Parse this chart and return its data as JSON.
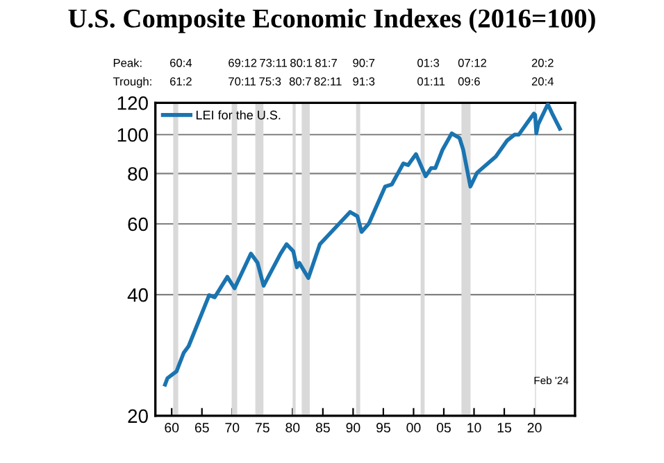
{
  "chart_data": {
    "type": "line",
    "title": "U.S. Composite Economic Indexes (2016=100)",
    "series": [
      {
        "name": "LEI for the U.S.",
        "color": "#1a74b0",
        "x": [
          1958.9,
          1959.3,
          1960.8,
          1962.0,
          1962.8,
          1966.2,
          1967.1,
          1969.2,
          1970.4,
          1973.1,
          1974.2,
          1975.2,
          1978.0,
          1979.0,
          1980.1,
          1980.7,
          1981.1,
          1982.6,
          1984.5,
          1989.5,
          1990.7,
          1991.4,
          1992.6,
          1995.3,
          1996.4,
          1998.3,
          1999.1,
          2000.4,
          2002.0,
          2002.9,
          2003.6,
          2004.8,
          2006.3,
          2007.6,
          2008.2,
          2009.4,
          2010.5,
          2013.6,
          2015.5,
          2016.7,
          2017.4,
          2018.9,
          2019.9,
          2020.1,
          2020.3,
          2020.6,
          2022.2,
          2022.9,
          2024.2
        ],
        "values": [
          23.9,
          24.8,
          25.8,
          28.7,
          29.8,
          39.9,
          39.4,
          44.3,
          41.5,
          50.6,
          48,
          42.1,
          50.6,
          53.4,
          51.3,
          46.8,
          48,
          44,
          53.4,
          64.2,
          62.7,
          57.3,
          60.1,
          74.3,
          75.2,
          84.8,
          84,
          89.4,
          78.8,
          82.6,
          82.6,
          91.8,
          100.7,
          98.1,
          91.8,
          74.3,
          80.4,
          88.2,
          96.8,
          100,
          100,
          107.6,
          112.8,
          112,
          100.7,
          106,
          119,
          113,
          103.4
        ]
      }
    ],
    "xlim": [
      1957.3,
      2026.7
    ],
    "xticks": [
      {
        "value": 1960,
        "label": "60"
      },
      {
        "value": 1965,
        "label": "65"
      },
      {
        "value": 1970,
        "label": "70"
      },
      {
        "value": 1975,
        "label": "75"
      },
      {
        "value": 1980,
        "label": "80"
      },
      {
        "value": 1985,
        "label": "85"
      },
      {
        "value": 1990,
        "label": "90"
      },
      {
        "value": 1995,
        "label": "95"
      },
      {
        "value": 2000,
        "label": "00"
      },
      {
        "value": 2005,
        "label": "05"
      },
      {
        "value": 2010,
        "label": "10"
      },
      {
        "value": 2015,
        "label": "15"
      },
      {
        "value": 2020,
        "label": "20"
      }
    ],
    "ylim": [
      20,
      120
    ],
    "yticks": [
      20,
      40,
      60,
      80,
      100,
      120
    ],
    "log": true,
    "grid": "y",
    "legend": "top left",
    "line_style": "solid",
    "marker": "none",
    "bands": [
      {
        "axis": "x",
        "from": 1960.25,
        "to": 1961.08,
        "color": "#d9d9d9"
      },
      {
        "axis": "x",
        "from": 1969.92,
        "to": 1970.83,
        "color": "#d9d9d9"
      },
      {
        "axis": "x",
        "from": 1973.83,
        "to": 1975.17,
        "color": "#d9d9d9"
      },
      {
        "axis": "x",
        "from": 1980.0,
        "to": 1980.5,
        "color": "#d9d9d9"
      },
      {
        "axis": "x",
        "from": 1981.5,
        "to": 1982.83,
        "color": "#d9d9d9"
      },
      {
        "axis": "x",
        "from": 1990.5,
        "to": 1991.17,
        "color": "#d9d9d9"
      },
      {
        "axis": "x",
        "from": 2001.17,
        "to": 2001.83,
        "color": "#d9d9d9"
      },
      {
        "axis": "x",
        "from": 2007.92,
        "to": 2009.42,
        "color": "#d9d9d9"
      },
      {
        "axis": "x",
        "from": 2020.08,
        "to": 2020.25,
        "color": "#d9d9d9"
      }
    ],
    "annotations": [
      "Peak:",
      "60:4",
      "69:12",
      "73:11",
      "80:1",
      "81:7",
      "90:7",
      "01:3",
      "07:12",
      "20:2",
      "Trough:",
      "61:2",
      "70:11",
      "75:3",
      "80:7",
      "82:11",
      "91:3",
      "01:11",
      "09:6",
      "20:4",
      "Feb '24"
    ]
  }
}
